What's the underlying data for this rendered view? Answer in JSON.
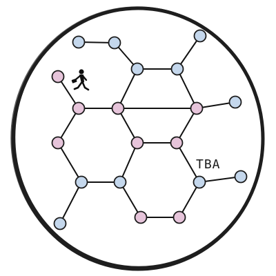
{
  "diagram": {
    "label_text": "TBA",
    "colors": {
      "ring": "#1e1e1e",
      "edge": "#111111",
      "node_stroke": "#1a1a1a",
      "node_blue": "#c4d7ec",
      "node_pink": "#e6c4da"
    },
    "nodes": [
      {
        "id": "n1",
        "color": "blue"
      },
      {
        "id": "n2",
        "color": "blue"
      },
      {
        "id": "n3",
        "color": "blue"
      },
      {
        "id": "n4",
        "color": "blue"
      },
      {
        "id": "n5",
        "color": "blue"
      },
      {
        "id": "n6",
        "color": "pink"
      },
      {
        "id": "n7",
        "color": "pink"
      },
      {
        "id": "n8",
        "color": "pink"
      },
      {
        "id": "n9",
        "color": "pink"
      },
      {
        "id": "n10",
        "color": "blue"
      },
      {
        "id": "n11",
        "color": "pink"
      },
      {
        "id": "n12",
        "color": "pink"
      },
      {
        "id": "n13",
        "color": "pink"
      },
      {
        "id": "n14",
        "color": "blue"
      },
      {
        "id": "n15",
        "color": "blue"
      },
      {
        "id": "n16",
        "color": "blue"
      },
      {
        "id": "n17",
        "color": "blue"
      },
      {
        "id": "n18",
        "color": "blue"
      },
      {
        "id": "n19",
        "color": "pink"
      },
      {
        "id": "n20",
        "color": "pink"
      },
      {
        "id": "n21",
        "color": "blue"
      }
    ],
    "edges": [
      [
        "n1",
        "n2"
      ],
      [
        "n2",
        "n3"
      ],
      [
        "n3",
        "n4"
      ],
      [
        "n4",
        "n5"
      ],
      [
        "n3",
        "n7"
      ],
      [
        "n4",
        "n8"
      ],
      [
        "n6",
        "n7"
      ],
      [
        "n7",
        "n8"
      ],
      [
        "n6",
        "n11"
      ],
      [
        "n7",
        "n12"
      ],
      [
        "n8",
        "n13"
      ],
      [
        "n8",
        "n10"
      ],
      [
        "n11",
        "n15"
      ],
      [
        "n12",
        "n13"
      ],
      [
        "n12",
        "n16"
      ],
      [
        "n13",
        "n17"
      ],
      [
        "n15",
        "n16"
      ],
      [
        "n16",
        "n19"
      ],
      [
        "n17",
        "n18"
      ],
      [
        "n17",
        "n20"
      ],
      [
        "n15",
        "n14"
      ],
      [
        "n19",
        "n20"
      ],
      [
        "n9",
        "n6"
      ]
    ]
  }
}
